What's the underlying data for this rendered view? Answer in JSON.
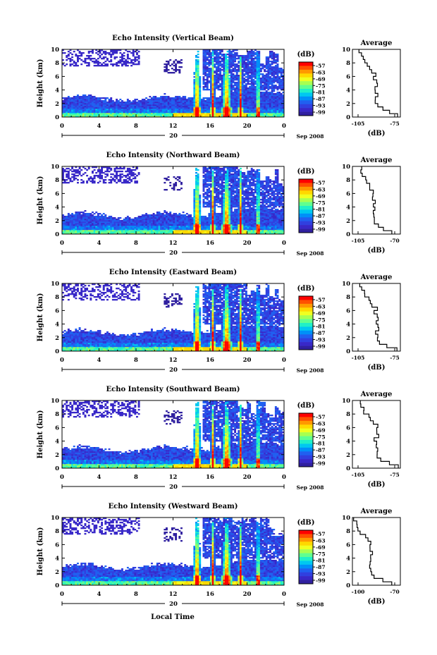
{
  "chart_data": {
    "type": "heatmap",
    "xlabel": "Local Time",
    "date_label": "Sep 2008",
    "date_day": "20",
    "panels": [
      {
        "title": "Echo Intensity (Vertical Beam)",
        "avg_xticks": [
          "-105",
          "-75"
        ],
        "avg_range": [
          -105,
          -75
        ]
      },
      {
        "title": "Echo Intensity (Northward Beam)",
        "avg_xticks": [
          "-105",
          "-70"
        ],
        "avg_range": [
          -105,
          -70
        ]
      },
      {
        "title": "Echo Intensity (Eastward Beam)",
        "avg_xticks": [
          "-105",
          "-75"
        ],
        "avg_range": [
          -105,
          -75
        ]
      },
      {
        "title": "Echo Intensity (Southward Beam)",
        "avg_xticks": [
          "-105",
          "-75"
        ],
        "avg_range": [
          -105,
          -75
        ]
      },
      {
        "title": "Echo Intensity (Westward Beam)",
        "avg_xticks": [
          "-100",
          "-70"
        ],
        "avg_range": [
          -100,
          -70
        ]
      }
    ],
    "ylabel": "Height (km)",
    "yticks": [
      "0",
      "2",
      "4",
      "6",
      "8",
      "10"
    ],
    "ylim": [
      0,
      10
    ],
    "xticks": [
      "0",
      "4",
      "8",
      "12",
      "16",
      "20",
      "0"
    ],
    "xlim": [
      0,
      24
    ],
    "colorbar": {
      "label": "(dB)",
      "ticks": [
        "-57",
        "-63",
        "-69",
        "-75",
        "-81",
        "-87",
        "-93",
        "-99"
      ],
      "colors": [
        "#ff0000",
        "#ff5000",
        "#ff9800",
        "#ffd800",
        "#f0ff20",
        "#a8ff50",
        "#60ff90",
        "#20f0c8",
        "#00c8f0",
        "#0090f8",
        "#2060f0",
        "#3040e0",
        "#3828c8",
        "#3020a0"
      ]
    },
    "avg_title": "Average",
    "avg_xlabel": "(dB)",
    "avg_yticks": [
      "0",
      "2",
      "4",
      "6",
      "8",
      "10"
    ],
    "avg_profile_heights": [
      0,
      0.5,
      1,
      1.5,
      2,
      2.5,
      3,
      3.5,
      4,
      4.5,
      5,
      5.5,
      6,
      6.5,
      7,
      7.5,
      8,
      8.5,
      9,
      9.5
    ],
    "avg_profile_values": [
      -72,
      -80,
      -86,
      -89,
      -90,
      -90,
      -89,
      -90,
      -91,
      -89,
      -90,
      -91,
      -90,
      -93,
      -95,
      -97,
      -99,
      -101,
      -102,
      -103
    ]
  }
}
